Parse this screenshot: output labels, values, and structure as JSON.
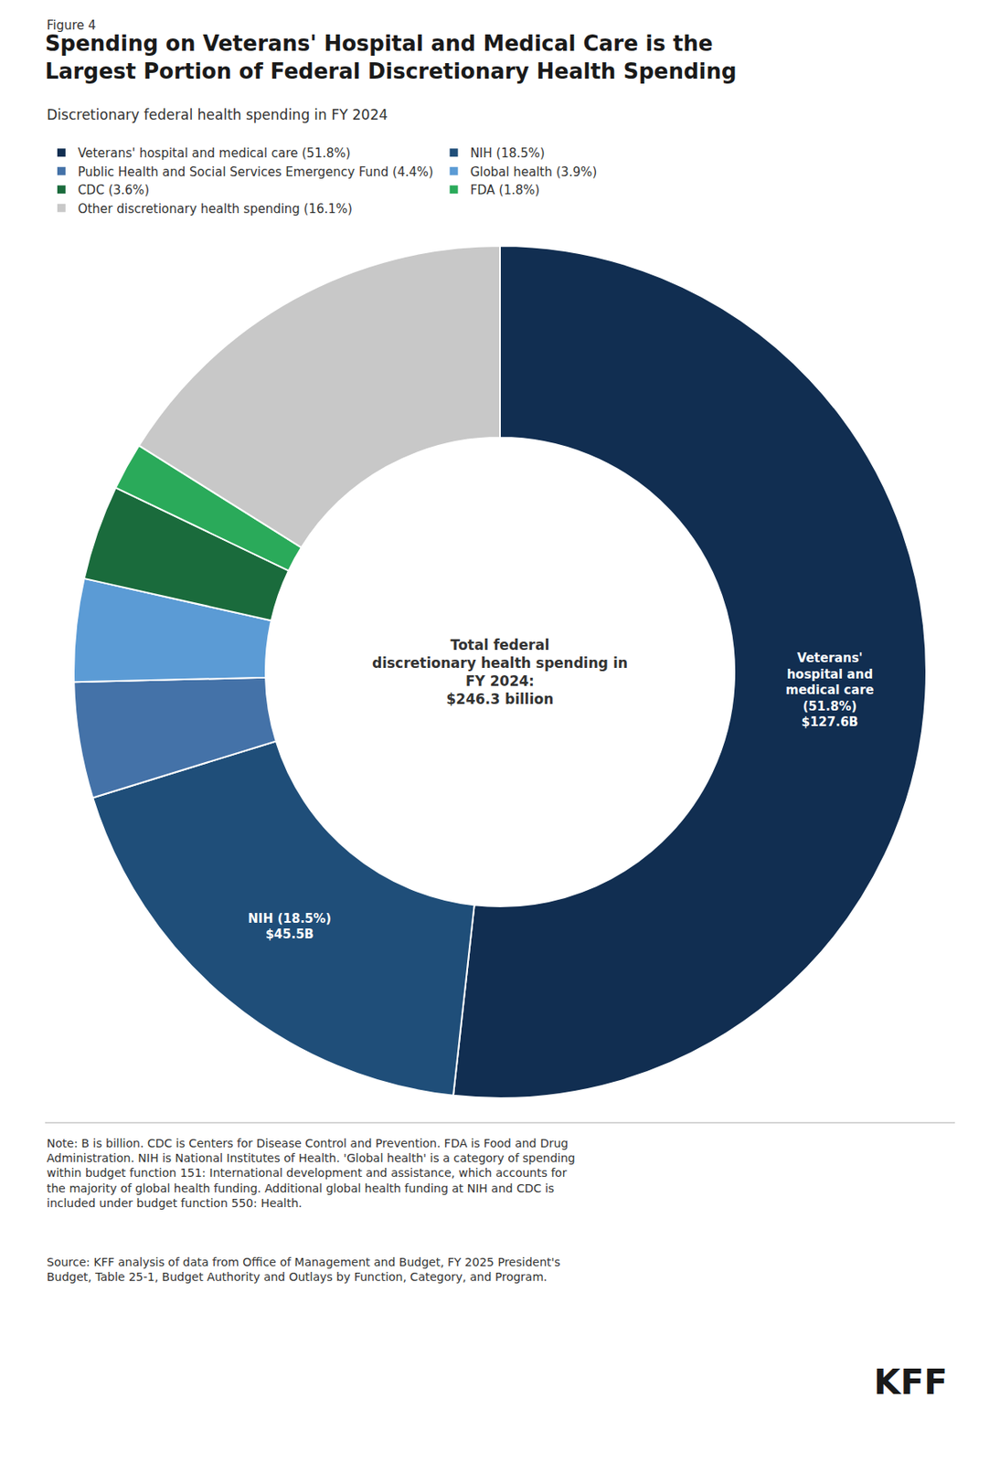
{
  "chart_data": {
    "type": "pie",
    "title": "Spending on Veterans' Hospital and Medical Care is the\nLargest Portion of Federal Discretionary Health Spending",
    "subtitle": "Discretionary federal health spending in FY 2024",
    "categories": [
      "Veterans' hospital and medical care (51.8%)",
      "NIH (18.5%)",
      "Public Health and Social Services Emergency Fund (4.4%)",
      "Global health (3.9%)",
      "CDC (3.6%)",
      "FDA (1.8%)",
      "Other discretionary health spending (16.1%)"
    ],
    "values": [
      51.8,
      18.5,
      4.4,
      3.9,
      3.6,
      1.8,
      16.1
    ],
    "colors": [
      "#112e51",
      "#1f4e79",
      "#4472a8",
      "#5b9bd5",
      "#1a6b3c",
      "#2aaa5a",
      "#c8c8c8"
    ],
    "data_labels": true,
    "value_labels": [
      "Veterans'\nhospital and\nmedical care\n(51.8%)\n$127.6B",
      "NIH (18.5%)\n$45.5B",
      null,
      null,
      null,
      null,
      null
    ],
    "legend": "top",
    "annotations": [
      "Figure 4",
      "Total federal\ndiscretionary health spending in\nFY 2024:\n$246.3 billion",
      "Note: B is billion. CDC is Centers for Disease Control and Prevention. FDA is Food and Drug\nAdministration. NIH is National Institutes of Health. 'Global health' is a category of spending\nwithin budget function 151: International development and assistance, which accounts for\nthe majority of global health funding. Additional global health funding at NIH and CDC is\nincluded under budget function 550: Health.",
      "Source: KFF analysis of data from Office of Management and Budget, FY 2025 President's\nBudget, Table 25-1, Budget Authority and Outlays by Function, Category, and Program.",
      "KFF"
    ]
  }
}
